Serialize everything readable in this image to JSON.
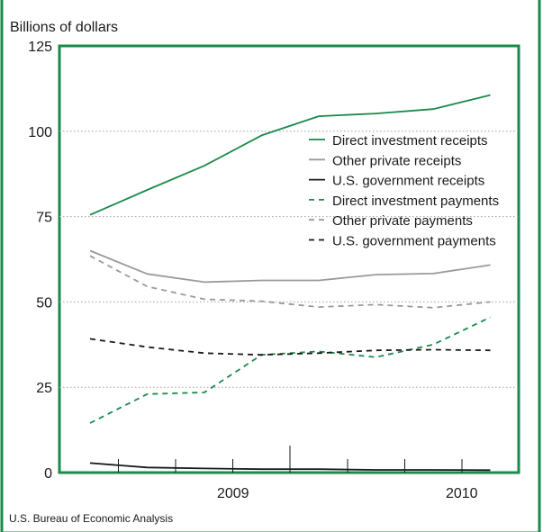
{
  "chart_data": {
    "type": "line",
    "title": "",
    "ylabel": "Billions of dollars",
    "xlabel": "",
    "ylim": [
      0,
      125
    ],
    "yticks": [
      0,
      25,
      50,
      75,
      100,
      125
    ],
    "x": [
      "2008Q3",
      "2008Q4",
      "2009Q1",
      "2009Q2",
      "2009Q3",
      "2009Q4",
      "2010Q1",
      "2010Q2",
      "2010Q3"
    ],
    "year_labels": [
      {
        "label": "2009",
        "quarters": [
          "2009Q1",
          "2009Q2"
        ]
      },
      {
        "label": "2010",
        "quarters": [
          "2010Q1",
          "2010Q2"
        ]
      }
    ],
    "series": [
      {
        "name": "Direct investment receipts",
        "color": "#1a8a4a",
        "style": "solid",
        "values": [
          75.5,
          82.8,
          89.9,
          98.8,
          104.4,
          105.2,
          106.5,
          110.6,
          null
        ]
      },
      {
        "name": "Other private receipts",
        "color": "#9a9a9a",
        "style": "solid",
        "values": [
          65.0,
          58.2,
          55.8,
          56.3,
          56.3,
          58.0,
          58.3,
          60.8,
          null
        ]
      },
      {
        "name": "U.S. government receipts",
        "color": "#1a1a1a",
        "style": "solid",
        "values": [
          2.8,
          1.5,
          1.2,
          1.0,
          1.0,
          0.8,
          0.8,
          0.7,
          null
        ]
      },
      {
        "name": "Direct investment payments",
        "color": "#1a8a4a",
        "style": "dashed",
        "values": [
          14.5,
          23.0,
          23.5,
          34.5,
          35.5,
          33.8,
          37.5,
          45.5,
          null
        ]
      },
      {
        "name": "Other private payments",
        "color": "#9a9a9a",
        "style": "dashed",
        "values": [
          63.5,
          54.5,
          50.8,
          50.2,
          48.5,
          49.2,
          48.3,
          50.0,
          null
        ]
      },
      {
        "name": "U.S. government payments",
        "color": "#1a1a1a",
        "style": "dashed",
        "values": [
          39.2,
          36.8,
          35.0,
          34.5,
          35.0,
          35.8,
          36.0,
          35.8,
          null
        ]
      }
    ],
    "legend_position": "top-right",
    "grid": true
  },
  "source": "U.S. Bureau of Economic Analysis",
  "colors": {
    "frame": "#1a8a4a",
    "grid": "#a0a0a0",
    "axis": "#1a1a1a"
  }
}
